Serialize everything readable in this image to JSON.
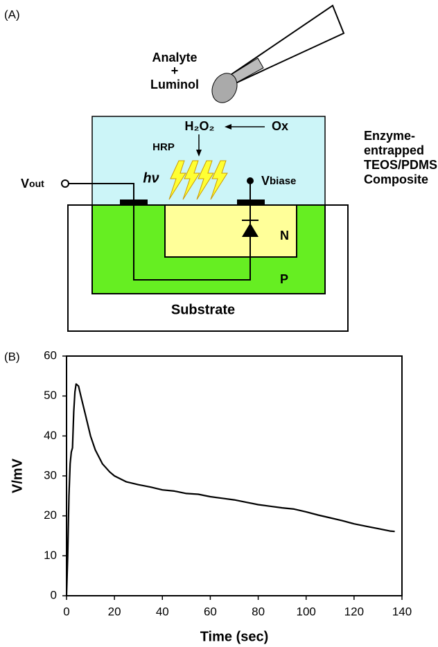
{
  "panel_a": {
    "label": "(A)",
    "analyte": "Analyte",
    "plus": "+",
    "luminol": "Luminol",
    "h2o2": "H₂O₂",
    "ox": "Ox",
    "hrp": "HRP",
    "hv": "hν",
    "v_out": {
      "main": "V",
      "sub": "out"
    },
    "v_biase": {
      "main": "V",
      "sub": "biase"
    },
    "composite": [
      "Enzyme-",
      "entrapped",
      "TEOS/PDMS",
      "Composite"
    ],
    "n": "N",
    "p": "P",
    "substrate": "Substrate"
  },
  "chart_data": {
    "type": "line",
    "panel_label": "(B)",
    "x_label": "Time (sec)",
    "y_label": "V/mV",
    "color": "#000000",
    "x": [
      0,
      0.5,
      1,
      1.5,
      2,
      2.5,
      3,
      3.5,
      4,
      5,
      6,
      8,
      10,
      12,
      15,
      18,
      20,
      25,
      30,
      35,
      40,
      45,
      50,
      55,
      60,
      65,
      70,
      75,
      80,
      85,
      90,
      95,
      100,
      105,
      110,
      115,
      120,
      125,
      130,
      135,
      137
    ],
    "values": [
      0,
      10,
      25,
      33,
      36,
      37,
      46,
      51,
      53,
      52.5,
      50,
      45,
      40,
      36.5,
      33,
      31,
      30,
      28.5,
      27.8,
      27.2,
      26.5,
      26.2,
      25.6,
      25.4,
      24.8,
      24.4,
      24,
      23.4,
      22.8,
      22.4,
      22,
      21.7,
      21,
      20.2,
      19.5,
      18.8,
      18,
      17.4,
      16.8,
      16.2,
      16.1
    ],
    "xlim": [
      0,
      140
    ],
    "ylim": [
      0,
      60
    ],
    "xticks": [
      0,
      20,
      40,
      60,
      80,
      100,
      120,
      140
    ],
    "yticks": [
      0,
      10,
      20,
      30,
      40,
      50,
      60
    ]
  }
}
